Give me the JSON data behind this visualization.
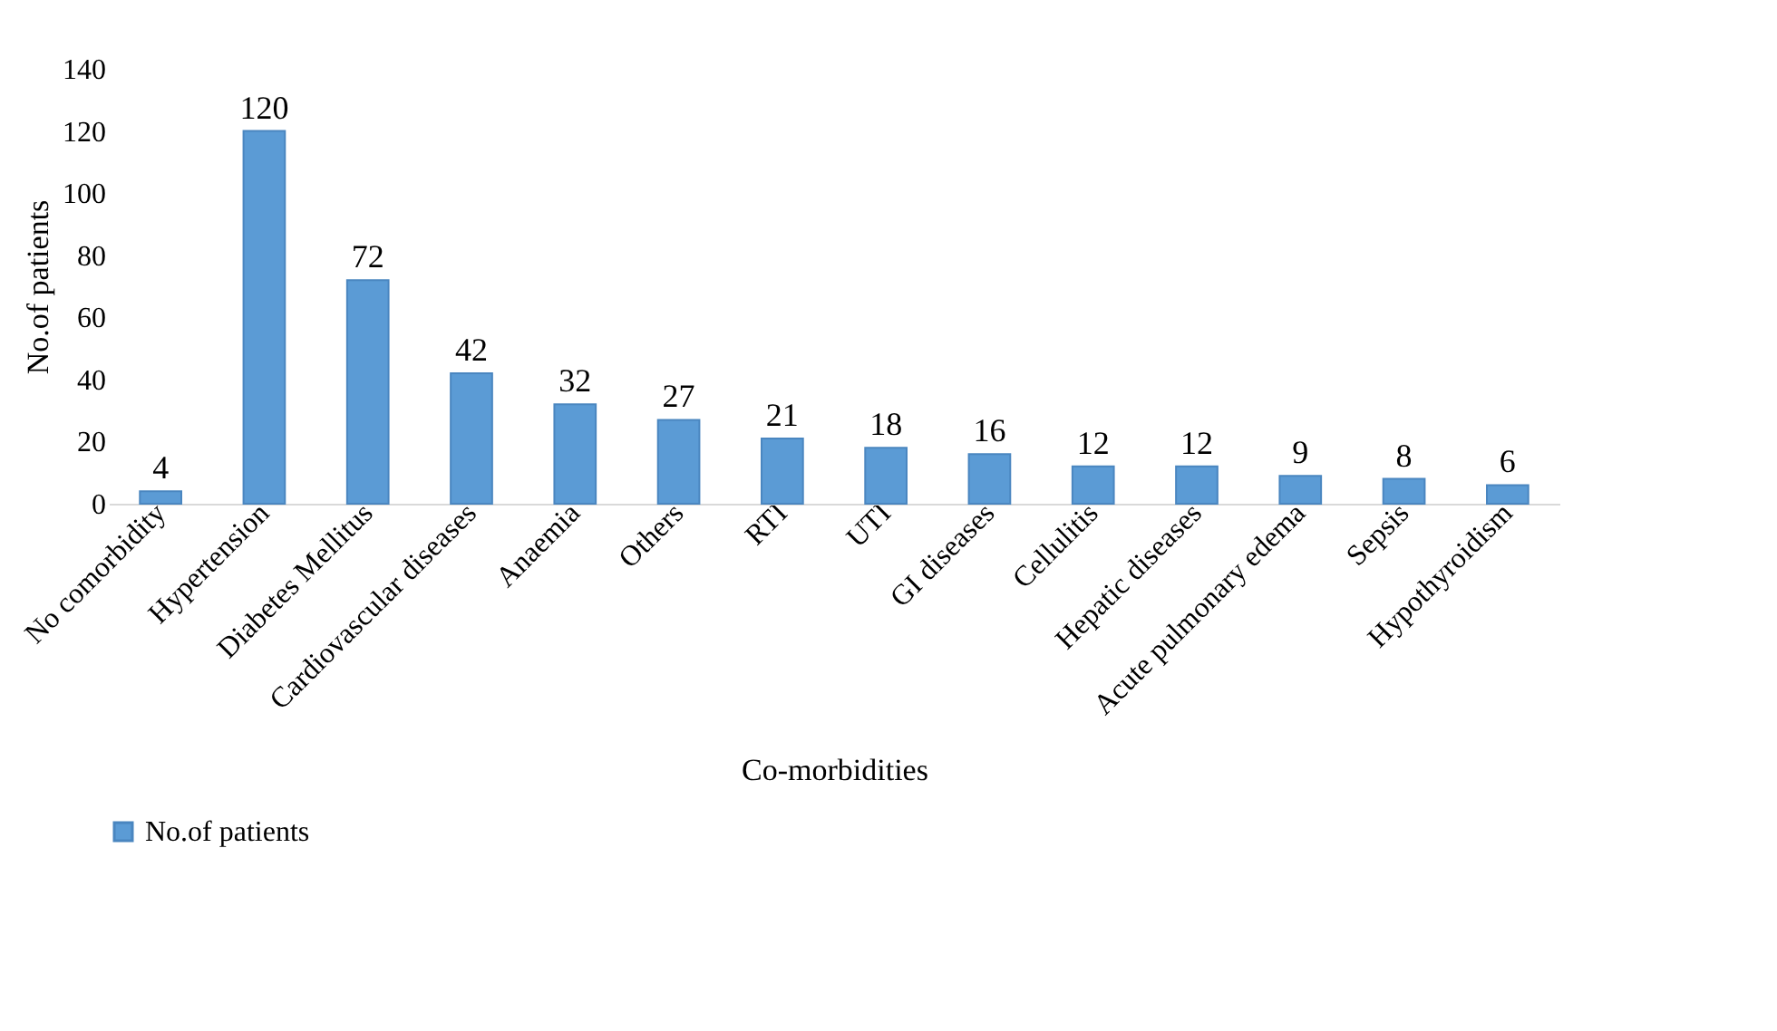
{
  "chart_data": {
    "type": "bar",
    "categories": [
      "No comorbidity",
      "Hypertension",
      "Diabetes Mellitus",
      "Cardiovascular diseases",
      "Anaemia",
      "Others",
      "RTI",
      "UTI",
      "GI diseases",
      "Cellulitis",
      "Hepatic diseases",
      "Acute pulmonary edema",
      "Sepsis",
      "Hypothyroidism"
    ],
    "series": [
      {
        "name": "No.of patients",
        "color": "#5b9bd5",
        "values": [
          4,
          120,
          72,
          42,
          32,
          27,
          21,
          18,
          16,
          12,
          12,
          9,
          8,
          6
        ]
      }
    ],
    "xlabel": "Co-morbidities",
    "ylabel": "No.of patients",
    "ylim": [
      0,
      140
    ],
    "yticks": [
      0,
      20,
      40,
      60,
      80,
      100,
      120,
      140
    ],
    "data_labels": true,
    "legend": "bottom"
  }
}
